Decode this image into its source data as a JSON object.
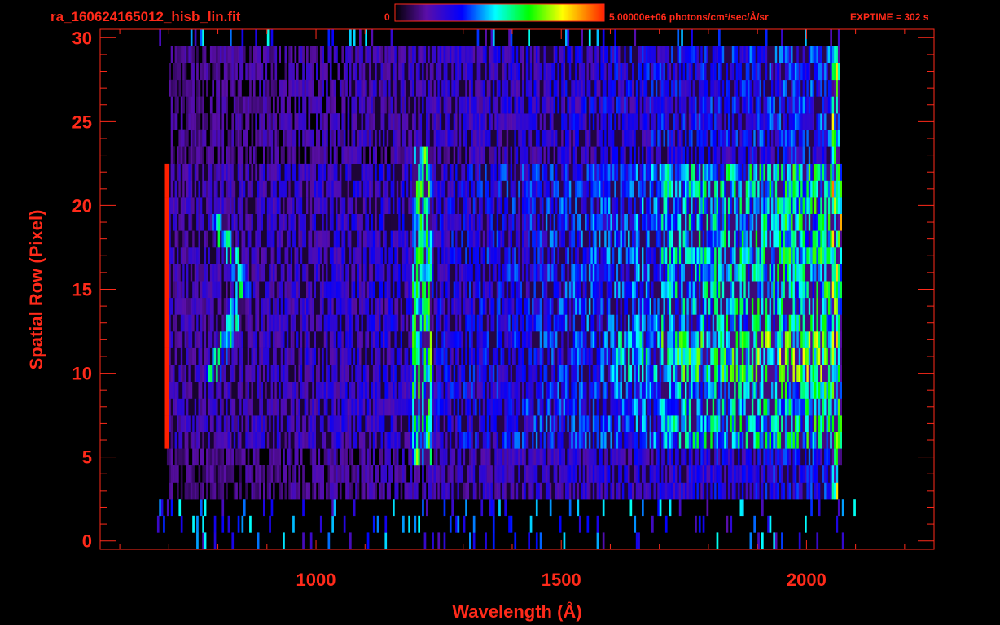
{
  "window": {
    "filename": "ra_160624165012_hisb_lin.fit",
    "colorbar_min_label": "0",
    "colorbar_max_label": "5.00000e+06 photons/cm²/sec/Å/sr",
    "exptime_label": "EXPTIME = 302 s"
  },
  "chart_data": {
    "type": "heatmap",
    "title": "",
    "xlabel": "Wavelength (Å)",
    "ylabel": "Spatial Row (Pixel)",
    "xlim": [
      560,
      2260
    ],
    "ylim": [
      -0.5,
      30.5
    ],
    "x_ticks": [
      1000,
      1500,
      2000
    ],
    "y_ticks": [
      0,
      5,
      10,
      15,
      20,
      25,
      30
    ],
    "colorbar": {
      "min": 0,
      "max": 5000000,
      "unit": "photons/cm²/sec/Å/sr",
      "colors": [
        "#000000",
        "#6a0dad",
        "#0000ff",
        "#00ffff",
        "#00ff00",
        "#ffff00",
        "#ff0000"
      ]
    },
    "axis_color": "#ff2a1a",
    "grid": false
  }
}
